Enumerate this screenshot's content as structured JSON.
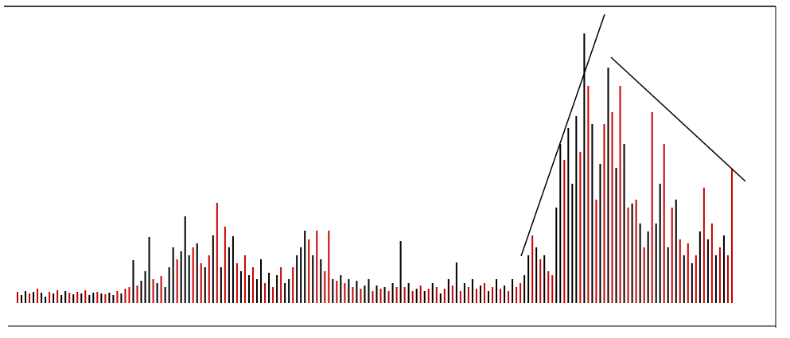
{
  "chart_data": {
    "type": "bar",
    "values": [
      14,
      10,
      15,
      12,
      14,
      18,
      13,
      8,
      14,
      12,
      16,
      10,
      15,
      13,
      11,
      14,
      12,
      16,
      10,
      13,
      14,
      12,
      11,
      13,
      10,
      15,
      12,
      18,
      20,
      54,
      22,
      28,
      40,
      83,
      30,
      25,
      34,
      20,
      45,
      70,
      55,
      65,
      109,
      60,
      70,
      75,
      50,
      45,
      60,
      85,
      126,
      45,
      96,
      70,
      84,
      50,
      40,
      60,
      35,
      45,
      30,
      55,
      25,
      38,
      20,
      35,
      45,
      25,
      30,
      45,
      60,
      70,
      91,
      80,
      60,
      91,
      55,
      40,
      91,
      30,
      28,
      35,
      25,
      30,
      20,
      28,
      18,
      22,
      30,
      15,
      22,
      18,
      20,
      15,
      25,
      20,
      78,
      20,
      25,
      15,
      18,
      22,
      15,
      18,
      25,
      20,
      12,
      18,
      30,
      22,
      51,
      15,
      25,
      20,
      30,
      18,
      22,
      25,
      15,
      20,
      30,
      18,
      22,
      15,
      30,
      20,
      25,
      35,
      60,
      85,
      70,
      55,
      60,
      40,
      35,
      120,
      200,
      180,
      220,
      150,
      235,
      190,
      339,
      273,
      225,
      130,
      175,
      225,
      296,
      240,
      170,
      273,
      200,
      120,
      125,
      130,
      100,
      70,
      90,
      240,
      100,
      150,
      200,
      70,
      120,
      130,
      80,
      60,
      75,
      50,
      60,
      90,
      145,
      80,
      100,
      60,
      70,
      85,
      60,
      169
    ],
    "colors": [
      "#c00",
      "#000",
      "#000",
      "#c00",
      "#000",
      "#c00",
      "#000",
      "#000",
      "#c00",
      "#000",
      "#c00",
      "#000",
      "#000",
      "#c00",
      "#000",
      "#c00",
      "#000",
      "#c00",
      "#000",
      "#000",
      "#c00",
      "#000",
      "#c00",
      "#000",
      "#000",
      "#c00",
      "#000",
      "#c00",
      "#c00",
      "#000",
      "#c00",
      "#000",
      "#000",
      "#000",
      "#c00",
      "#000",
      "#c00",
      "#000",
      "#000",
      "#000",
      "#c00",
      "#000",
      "#000",
      "#000",
      "#c00",
      "#000",
      "#c00",
      "#000",
      "#c00",
      "#000",
      "#c00",
      "#000",
      "#c00",
      "#000",
      "#000",
      "#c00",
      "#000",
      "#c00",
      "#000",
      "#c00",
      "#000",
      "#000",
      "#c00",
      "#000",
      "#c00",
      "#000",
      "#c00",
      "#000",
      "#000",
      "#c00",
      "#000",
      "#000",
      "#000",
      "#c00",
      "#000",
      "#c00",
      "#000",
      "#c00",
      "#c00",
      "#000",
      "#c00",
      "#000",
      "#c00",
      "#000",
      "#c00",
      "#000",
      "#c00",
      "#000",
      "#000",
      "#c00",
      "#000",
      "#c00",
      "#000",
      "#c00",
      "#000",
      "#c00",
      "#000",
      "#c00",
      "#000",
      "#c00",
      "#000",
      "#c00",
      "#000",
      "#c00",
      "#000",
      "#c00",
      "#000",
      "#c00",
      "#000",
      "#c00",
      "#000",
      "#c00",
      "#000",
      "#c00",
      "#000",
      "#c00",
      "#000",
      "#c00",
      "#000",
      "#c00",
      "#000",
      "#c00",
      "#000",
      "#c00",
      "#000",
      "#c00",
      "#c00",
      "#000",
      "#000",
      "#c00",
      "#000",
      "#c00",
      "#000",
      "#c00",
      "#c00",
      "#000",
      "#000",
      "#c00",
      "#000",
      "#000",
      "#000",
      "#c00",
      "#000",
      "#c00",
      "#000",
      "#c00",
      "#000",
      "#c00",
      "#000",
      "#c00",
      "#000",
      "#c00",
      "#000",
      "#c00",
      "#000",
      "#c00",
      "#000",
      "#c00",
      "#000",
      "#c00",
      "#000",
      "#000",
      "#c00",
      "#000",
      "#c00",
      "#000",
      "#c00",
      "#000",
      "#c00",
      "#000",
      "#c00",
      "#000",
      "#c00",
      "#000",
      "#c00",
      "#000",
      "#c00",
      "#000",
      "#c00",
      "#c00"
    ],
    "ylim": [
      0,
      370
    ]
  }
}
